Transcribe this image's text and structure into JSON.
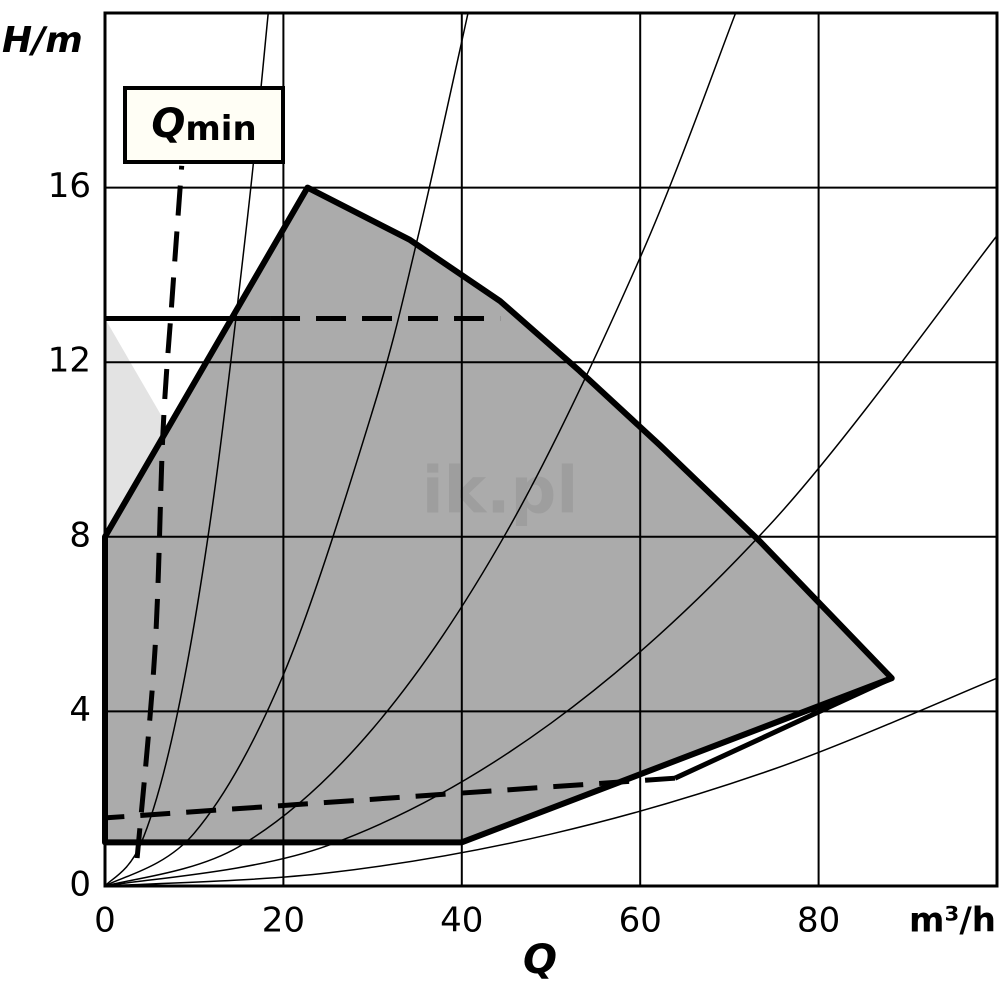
{
  "chart_data": {
    "type": "line",
    "y_label": "H/m",
    "x_label": "Q",
    "x_unit": "m³/h",
    "annotation": {
      "main": "Q",
      "sub": "min"
    },
    "watermark": "ik.pl",
    "xlim": [
      0,
      100
    ],
    "ylim": [
      0,
      20
    ],
    "xticks": [
      0,
      20,
      40,
      60,
      80
    ],
    "yticks": [
      0,
      4,
      8,
      12,
      16
    ],
    "grid": true,
    "series": [
      {
        "x": [
          0,
          0,
          14.2
        ],
        "values": [
          8,
          13,
          8
        ],
        "fill": "#e3e3e3",
        "color": "none",
        "width": 0,
        "style": "solid"
      },
      {
        "x": [
          0,
          22.7,
          34.2,
          44.3,
          53.2,
          62.2,
          73.4,
          88.2,
          40,
          0,
          0
        ],
        "values": [
          8,
          16,
          14.8,
          13.4,
          11.8,
          10.1,
          7.9,
          4.76,
          1,
          1,
          8
        ],
        "fill": "#ababab",
        "color": "#000",
        "width": 6,
        "style": "solid"
      },
      {
        "x": [
          0,
          4,
          8,
          12,
          16,
          18.3
        ],
        "values": [
          0,
          0.96,
          3.84,
          8.64,
          15.36,
          20
        ],
        "color": "#000",
        "width": 1.5,
        "style": "curve"
      },
      {
        "x": [
          0,
          10,
          20,
          30,
          35,
          40.7
        ],
        "values": [
          0,
          1.21,
          4.84,
          10.89,
          14.8,
          20
        ],
        "color": "#000",
        "width": 1.5,
        "style": "curve"
      },
      {
        "x": [
          0,
          15,
          30,
          45,
          60,
          70.7
        ],
        "values": [
          0,
          0.9,
          3.6,
          8.1,
          14.4,
          20
        ],
        "color": "#000",
        "width": 1.5,
        "style": "curve"
      },
      {
        "x": [
          0,
          25,
          50,
          75,
          100
        ],
        "values": [
          0,
          0.93,
          3.73,
          8.38,
          14.9
        ],
        "color": "#000",
        "width": 1.5,
        "style": "curve"
      },
      {
        "x": [
          0,
          25,
          50,
          75,
          100
        ],
        "values": [
          0,
          0.3,
          1.19,
          2.68,
          4.76
        ],
        "color": "#000",
        "width": 1.5,
        "style": "curve"
      },
      {
        "x": [
          0,
          18.5
        ],
        "values": [
          13,
          13
        ],
        "color": "#000",
        "width": 5,
        "style": "solid"
      },
      {
        "x": [
          18.5,
          44.3
        ],
        "values": [
          13,
          13
        ],
        "color": "#000",
        "width": 5,
        "style": "dashed"
      },
      {
        "x": [
          88.2,
          63.9
        ],
        "values": [
          4.76,
          2.47
        ],
        "color": "#000",
        "width": 5,
        "style": "solid"
      },
      {
        "x": [
          63.9,
          0
        ],
        "values": [
          2.47,
          1.56
        ],
        "color": "#000",
        "width": 5,
        "style": "dashed"
      },
      {
        "x": [
          3.6,
          5.6,
          6.5,
          7.5,
          8.6
        ],
        "values": [
          0.64,
          5.4,
          10.4,
          13.4,
          16.5
        ],
        "color": "#000",
        "width": 5,
        "style": "dashed-curve"
      }
    ]
  }
}
